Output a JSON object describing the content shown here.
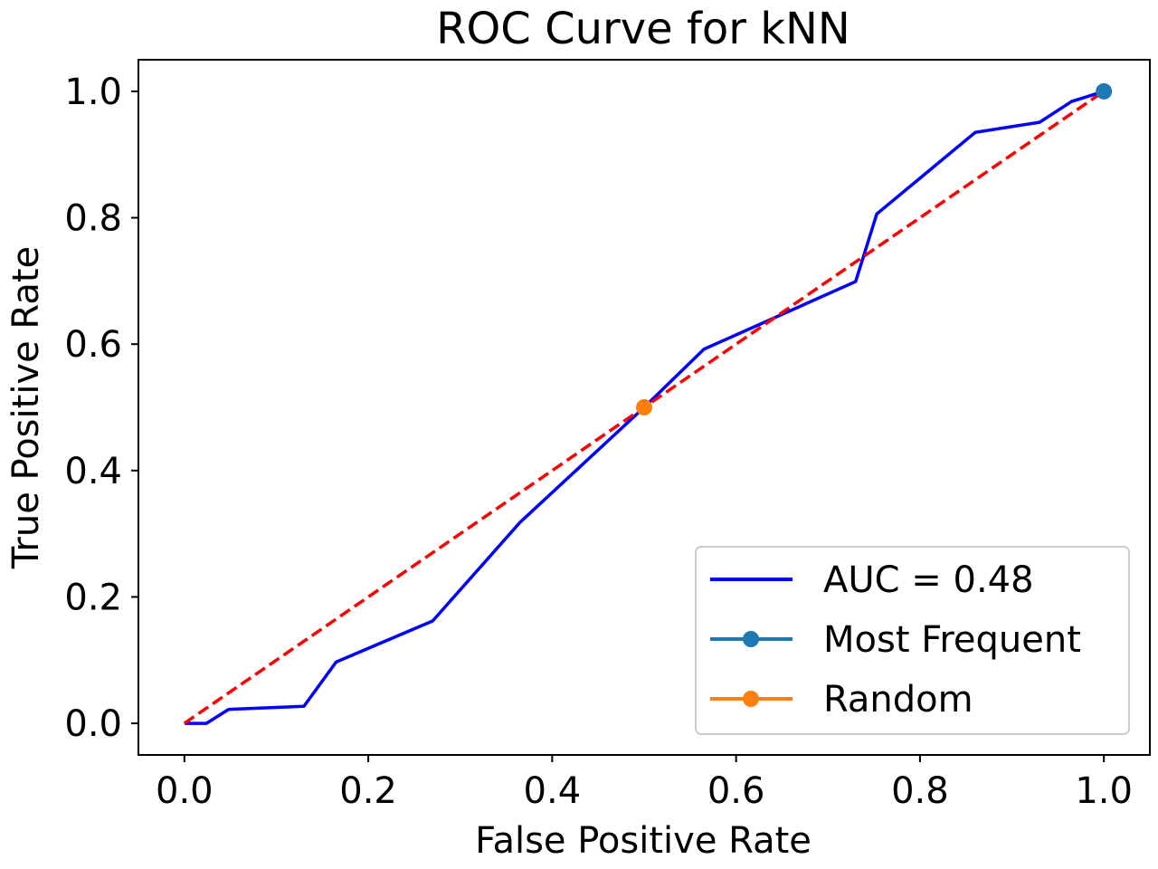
{
  "chart_data": {
    "type": "line",
    "title": "ROC Curve for kNN",
    "xlabel": "False Positive Rate",
    "ylabel": "True Positive Rate",
    "xlim": [
      -0.05,
      1.05
    ],
    "ylim": [
      -0.05,
      1.05
    ],
    "grid": false,
    "legend_position": "bottom-right",
    "x_ticks": [
      "0.0",
      "0.2",
      "0.4",
      "0.6",
      "0.8",
      "1.0"
    ],
    "y_ticks": [
      "0.0",
      "0.2",
      "0.4",
      "0.6",
      "0.8",
      "1.0"
    ],
    "series": [
      {
        "name": "AUC = 0.48",
        "style": "solid-line",
        "color": "#0000ff",
        "x": [
          0.0,
          0.024,
          0.048,
          0.13,
          0.165,
          0.27,
          0.365,
          0.5,
          0.565,
          0.73,
          0.753,
          0.86,
          0.93,
          0.965,
          1.0
        ],
        "y": [
          0.0,
          0.0,
          0.022,
          0.027,
          0.097,
          0.162,
          0.318,
          0.5,
          0.592,
          0.699,
          0.806,
          0.935,
          0.951,
          0.984,
          1.0
        ]
      },
      {
        "name": "Most Frequent",
        "style": "marker",
        "color": "#1f77b4",
        "x": [
          1.0
        ],
        "y": [
          1.0
        ]
      },
      {
        "name": "Random",
        "style": "marker",
        "color": "#ff7f0e",
        "x": [
          0.5
        ],
        "y": [
          0.5
        ]
      }
    ],
    "reference_line": {
      "style": "dashed",
      "color": "#ff0000",
      "x": [
        0.0,
        1.0
      ],
      "y": [
        0.0,
        1.0
      ]
    }
  }
}
